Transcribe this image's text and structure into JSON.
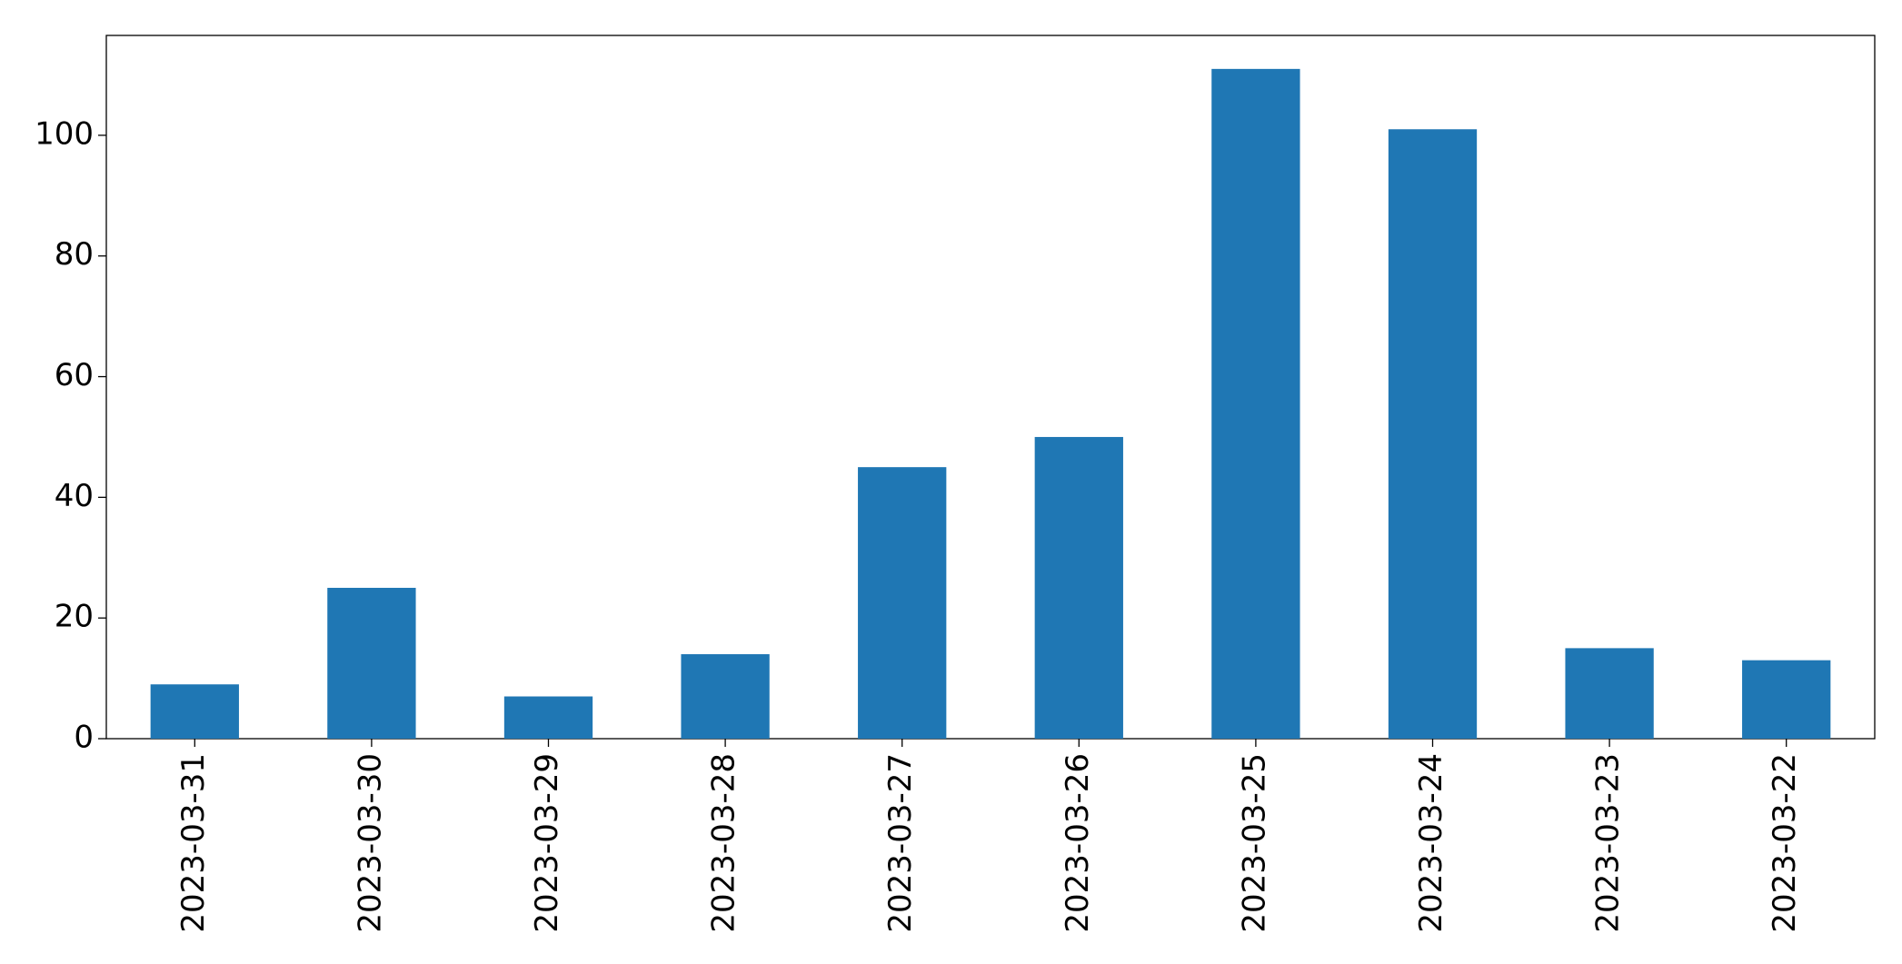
{
  "chart_data": {
    "type": "bar",
    "categories": [
      "2023-03-31",
      "2023-03-30",
      "2023-03-29",
      "2023-03-28",
      "2023-03-27",
      "2023-03-26",
      "2023-03-25",
      "2023-03-24",
      "2023-03-23",
      "2023-03-22"
    ],
    "values": [
      9,
      25,
      7,
      14,
      45,
      50,
      111,
      101,
      15,
      13
    ],
    "color": "#1f77b4",
    "ylim": [
      0,
      116.55
    ],
    "yticks": [
      0,
      20,
      40,
      60,
      80,
      100
    ],
    "grid": false
  }
}
